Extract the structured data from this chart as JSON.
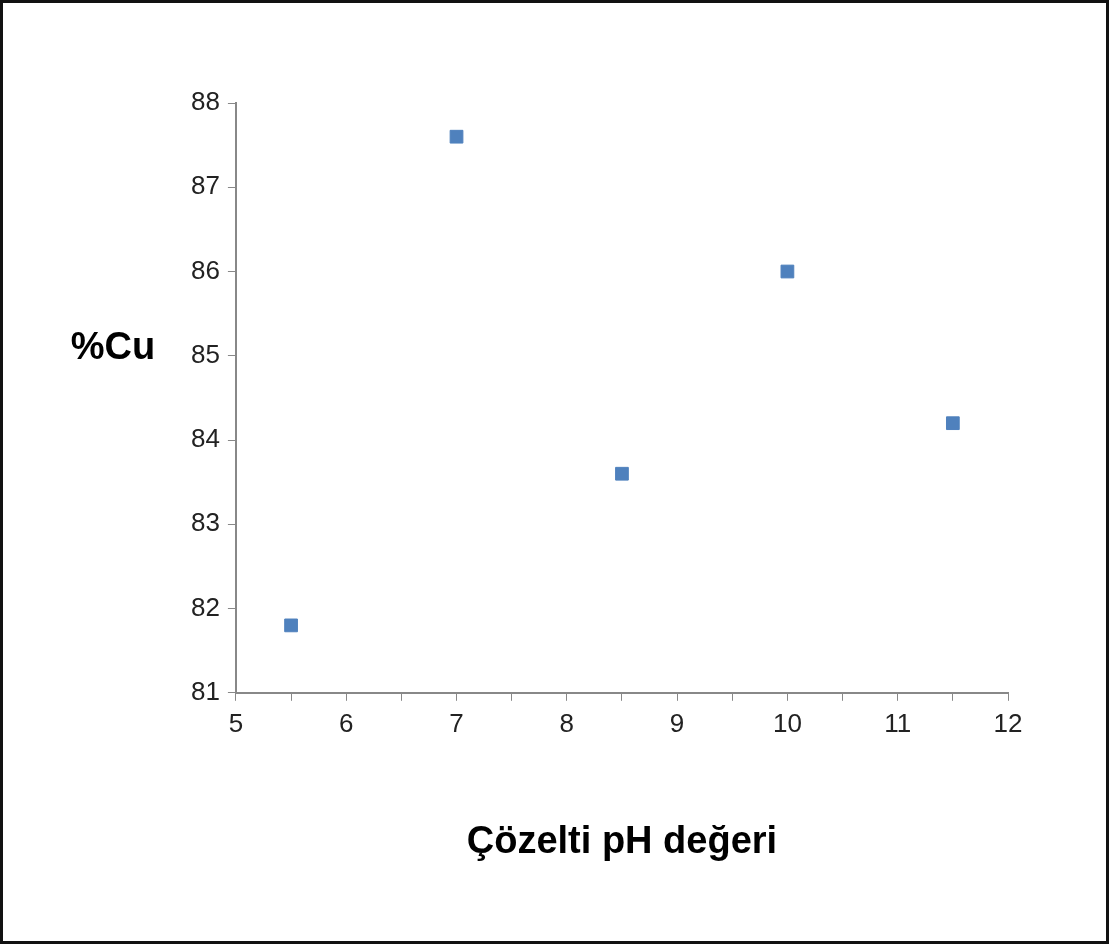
{
  "chart_data": {
    "type": "scatter",
    "xlabel": "Çözelti pH değeri",
    "ylabel": "%Cu",
    "x": [
      5.5,
      7,
      8.5,
      10,
      11.5
    ],
    "values": [
      81.8,
      87.6,
      83.6,
      86.0,
      84.2
    ],
    "color": "#4f81bd",
    "marker": "square",
    "grid": false,
    "legend": false,
    "xlim": [
      5,
      12
    ],
    "ylim": [
      81,
      88
    ],
    "xticks": [
      5,
      {
        "value": 5.5,
        "label": null
      },
      6,
      {
        "value": 6.5,
        "label": null
      },
      7,
      {
        "value": 7.5,
        "label": null
      },
      8,
      {
        "value": 8.5,
        "label": null
      },
      9,
      {
        "value": 9.5,
        "label": null
      },
      10,
      {
        "value": 10.5,
        "label": null
      },
      11,
      {
        "value": 11.5,
        "label": null
      },
      12
    ],
    "yticks": [
      81,
      82,
      83,
      84,
      85,
      86,
      87,
      88
    ]
  }
}
